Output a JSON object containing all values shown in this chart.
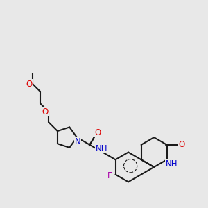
{
  "bg_color": "#e8e8e8",
  "bond_color": "#1a1a1a",
  "bond_width": 1.5,
  "atom_colors": {
    "O": "#dd0000",
    "N": "#0000cc",
    "F": "#aa00aa",
    "C": "#1a1a1a"
  },
  "font_size": 8.5,
  "fig_size": [
    3.0,
    3.0
  ],
  "dpi": 100,
  "BL": 0.72
}
